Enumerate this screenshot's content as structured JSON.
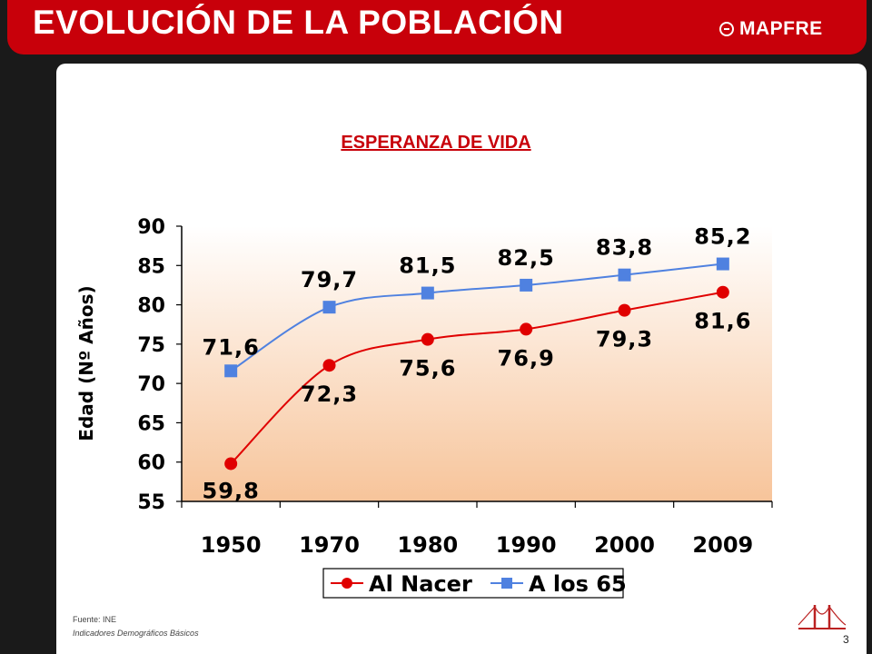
{
  "header": {
    "title": "EVOLUCIÓN DE LA POBLACIÓN",
    "logo_text": "MAPFRE"
  },
  "colors": {
    "brand_red": "#c8000a",
    "series_red": "#e00000",
    "series_blue": "#4f81e0"
  },
  "chart_data": {
    "type": "line",
    "title": "ESPERANZA DE VIDA",
    "xlabel": "",
    "ylabel": "Edad (Nº Años)",
    "categories": [
      "1950",
      "1970",
      "1980",
      "1990",
      "2000",
      "2009"
    ],
    "ylim": [
      55,
      90
    ],
    "yticks": [
      "55",
      "60",
      "65",
      "70",
      "75",
      "80",
      "85",
      "90"
    ],
    "grid": false,
    "legend_position": "bottom",
    "series": [
      {
        "name": "Al Nacer",
        "marker": "circle",
        "values": [
          59.8,
          72.3,
          75.6,
          76.9,
          79.3,
          81.6
        ],
        "labels": [
          "59,8",
          "72,3",
          "75,6",
          "76,9",
          "79,3",
          "81,6"
        ]
      },
      {
        "name": "A los 65",
        "marker": "square",
        "values": [
          71.6,
          79.7,
          81.5,
          82.5,
          83.8,
          85.2
        ],
        "labels": [
          "71,6",
          "79,7",
          "81,5",
          "82,5",
          "83,8",
          "85,2"
        ]
      }
    ]
  },
  "footer": {
    "source": "Fuente: INE",
    "subsource": "Indicadores Demográficos Básicos",
    "page_number": "3"
  }
}
